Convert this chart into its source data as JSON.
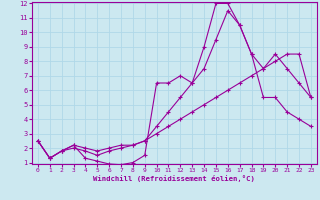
{
  "xlabel": "Windchill (Refroidissement éolien,°C)",
  "bg_color": "#cce8f0",
  "grid_color": "#b0d8e8",
  "line_color": "#990099",
  "xlim": [
    -0.5,
    23.5
  ],
  "ylim": [
    1,
    12
  ],
  "xticks": [
    0,
    1,
    2,
    3,
    4,
    5,
    6,
    7,
    8,
    9,
    10,
    11,
    12,
    13,
    14,
    15,
    16,
    17,
    18,
    19,
    20,
    21,
    22,
    23
  ],
  "yticks": [
    1,
    2,
    3,
    4,
    5,
    6,
    7,
    8,
    9,
    10,
    11,
    12
  ],
  "series": [
    {
      "x": [
        0,
        1,
        2,
        3,
        4,
        5,
        6,
        7,
        8,
        9,
        10,
        11,
        12,
        13,
        14,
        15,
        16,
        17,
        18,
        19,
        20,
        21,
        22,
        23
      ],
      "y": [
        2.5,
        1.3,
        1.8,
        2.2,
        1.3,
        1.1,
        0.9,
        0.85,
        1.0,
        1.5,
        6.5,
        6.5,
        7.0,
        6.5,
        9.0,
        12.0,
        12.0,
        10.5,
        8.5,
        7.5,
        8.5,
        7.5,
        6.5,
        5.5
      ]
    },
    {
      "x": [
        0,
        1,
        2,
        3,
        4,
        5,
        6,
        7,
        8,
        9,
        10,
        11,
        12,
        13,
        14,
        15,
        16,
        17,
        18,
        19,
        20,
        21,
        22,
        23
      ],
      "y": [
        2.5,
        1.3,
        1.8,
        2.2,
        2.0,
        1.8,
        2.0,
        2.2,
        2.2,
        2.5,
        3.5,
        4.5,
        5.5,
        6.5,
        7.5,
        9.5,
        11.5,
        10.5,
        8.5,
        5.5,
        5.5,
        4.5,
        4.0,
        3.5
      ]
    },
    {
      "x": [
        0,
        1,
        2,
        3,
        4,
        5,
        6,
        7,
        8,
        9,
        10,
        11,
        12,
        13,
        14,
        15,
        16,
        17,
        18,
        19,
        20,
        21,
        22,
        23
      ],
      "y": [
        2.5,
        1.3,
        1.8,
        2.0,
        1.8,
        1.5,
        1.8,
        2.0,
        2.2,
        2.5,
        3.0,
        3.5,
        4.0,
        4.5,
        5.0,
        5.5,
        6.0,
        6.5,
        7.0,
        7.5,
        8.0,
        8.5,
        8.5,
        5.5
      ]
    }
  ]
}
